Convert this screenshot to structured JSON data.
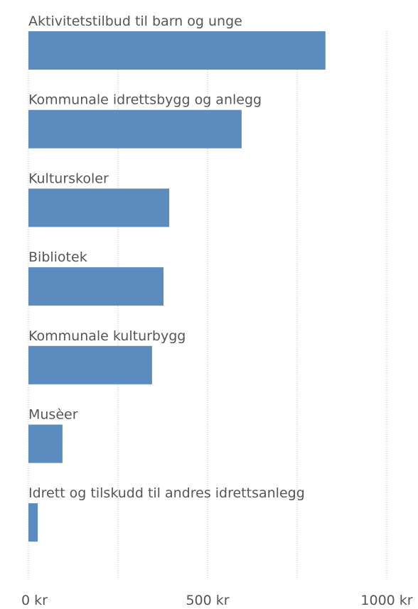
{
  "chart_data": {
    "type": "bar",
    "orientation": "horizontal",
    "categories": [
      "Aktivitetstilbud til barn og unge",
      "Kommunale idrettsbygg og anlegg",
      "Kulturskoler",
      "Bibliotek",
      "Kommunale kulturbygg",
      "Musèer",
      "Idrett og tilskudd til andres idrettsanlegg"
    ],
    "values": [
      829,
      595,
      393,
      377,
      345,
      95,
      26
    ],
    "color": "#5b8bbf",
    "xlim": [
      0,
      1000
    ],
    "xticks": [
      {
        "value": 0,
        "label": "0 kr"
      },
      {
        "value": 500,
        "label": "500 kr"
      },
      {
        "value": 1000,
        "label": "1000 kr"
      }
    ],
    "grid_lines": [
      0,
      250,
      500,
      750,
      1000
    ],
    "grid": true
  }
}
